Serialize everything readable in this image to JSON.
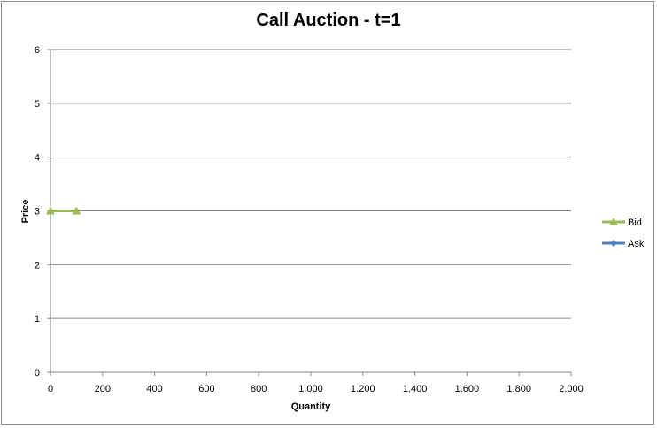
{
  "chart_data": {
    "type": "line",
    "title": "Call Auction - t=1",
    "xlabel": "Quantity",
    "ylabel": "Price",
    "xlim": [
      0,
      2000
    ],
    "ylim": [
      0,
      6
    ],
    "x_ticks": [
      "0",
      "200",
      "400",
      "600",
      "800",
      "1.000",
      "1.200",
      "1.400",
      "1.600",
      "1.800",
      "2.000"
    ],
    "y_ticks": [
      "0",
      "1",
      "2",
      "3",
      "4",
      "5",
      "6"
    ],
    "grid": "horizontal",
    "legend_position": "right",
    "series": [
      {
        "name": "Bid",
        "color": "#9bbb59",
        "marker": "triangle",
        "x": [
          0,
          100
        ],
        "y": [
          3,
          3
        ]
      },
      {
        "name": "Ask",
        "color": "#4f81bd",
        "marker": "diamond",
        "x": [],
        "y": []
      }
    ]
  }
}
